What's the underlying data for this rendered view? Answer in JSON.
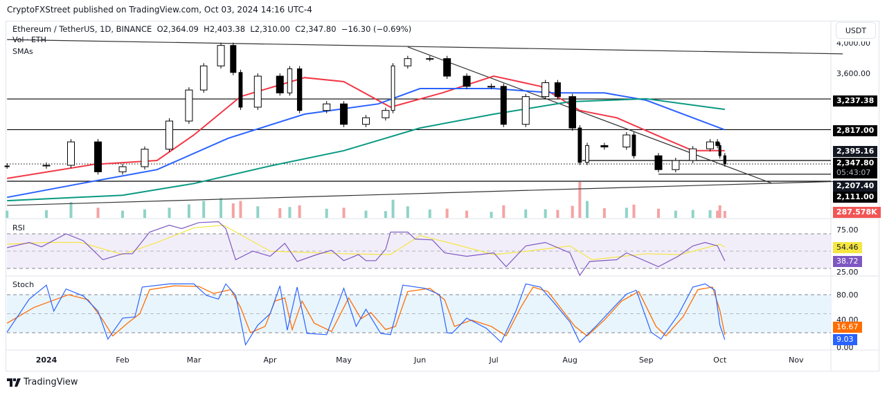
{
  "header": {
    "published": "CryptoFXStreet published on TradingView.com, Oct 03, 2024 14:16 UTC-4",
    "symbol": "Ethereum / TetherUS, 1D, BINANCE",
    "open": "O2,364.09",
    "high": "H2,403.38",
    "low": "L2,310.00",
    "close": "C2,347.80",
    "change": "−16.30 (−0.69%)",
    "vol_label": "Vol · ETH",
    "sma_label": "SMAs",
    "rsi_label": "RSI",
    "stoch_label": "Stoch",
    "currency_button": "USDT"
  },
  "footer": {
    "brand": "TradingView"
  },
  "colors": {
    "up_candle": "#ffffff",
    "down_candle": "#000000",
    "vol_up": "#8fd3c8",
    "vol_down": "#f5a3a3",
    "sma50": "#f23645",
    "sma100": "#2962ff",
    "sma200": "#089981",
    "rsi": "#7e57c2",
    "rsi_ma": "#f5e642",
    "stoch_k": "#2962ff",
    "stoch_d": "#ff6d00",
    "volume_badge": "#f25555"
  },
  "chart_data": {
    "type": "candlestick",
    "price_axis": {
      "ticks": [
        "4,000.00",
        "3,600.00"
      ],
      "ylim": [
        1780,
        4100
      ],
      "scale": "linear"
    },
    "time_axis": {
      "ticks": [
        "2024",
        "Feb",
        "Mar",
        "Apr",
        "May",
        "Jun",
        "Jul",
        "Aug",
        "Sep",
        "Oct",
        "Nov"
      ],
      "tick_dates": [
        "2024-01-01",
        "2024-02-01",
        "2024-03-01",
        "2024-04-01",
        "2024-05-01",
        "2024-06-01",
        "2024-07-01",
        "2024-08-01",
        "2024-09-01",
        "2024-10-01",
        "2024-11-01"
      ],
      "xlim": [
        "2023-12-16",
        "2024-11-20"
      ]
    },
    "price": [
      [
        "2023-12-16",
        2320
      ],
      [
        "2024-01-01",
        2330
      ],
      [
        "2024-01-11",
        2650
      ],
      [
        "2024-01-22",
        2240
      ],
      [
        "2024-02-01",
        2310
      ],
      [
        "2024-02-10",
        2550
      ],
      [
        "2024-02-20",
        2935
      ],
      [
        "2024-02-28",
        3360
      ],
      [
        "2024-03-05",
        3690
      ],
      [
        "2024-03-12",
        3970
      ],
      [
        "2024-03-17",
        3600
      ],
      [
        "2024-03-20",
        3125
      ],
      [
        "2024-03-27",
        3550
      ],
      [
        "2024-04-05",
        3320
      ],
      [
        "2024-04-09",
        3650
      ],
      [
        "2024-04-13",
        3080
      ],
      [
        "2024-04-24",
        3170
      ],
      [
        "2024-05-01",
        2890
      ],
      [
        "2024-05-10",
        2980
      ],
      [
        "2024-05-18",
        3080
      ],
      [
        "2024-05-21",
        3690
      ],
      [
        "2024-05-27",
        3790
      ],
      [
        "2024-06-05",
        3790
      ],
      [
        "2024-06-12",
        3550
      ],
      [
        "2024-06-20",
        3410
      ],
      [
        "2024-06-30",
        3410
      ],
      [
        "2024-07-05",
        2890
      ],
      [
        "2024-07-14",
        3270
      ],
      [
        "2024-07-22",
        3460
      ],
      [
        "2024-07-27",
        3270
      ],
      [
        "2024-08-02",
        2840
      ],
      [
        "2024-08-05",
        2370
      ],
      [
        "2024-08-08",
        2600
      ],
      [
        "2024-08-15",
        2580
      ],
      [
        "2024-08-24",
        2745
      ],
      [
        "2024-08-27",
        2460
      ],
      [
        "2024-09-06",
        2270
      ],
      [
        "2024-09-13",
        2395
      ],
      [
        "2024-09-20",
        2555
      ],
      [
        "2024-09-27",
        2650
      ],
      [
        "2024-09-30",
        2600
      ],
      [
        "2024-10-01",
        2460
      ],
      [
        "2024-10-03",
        2347.8
      ]
    ],
    "volume_k": [
      300,
      320,
      650,
      420,
      300,
      350,
      420,
      560,
      700,
      820,
      600,
      700,
      480,
      400,
      450,
      520,
      380,
      420,
      300,
      280,
      750,
      480,
      350,
      380,
      300,
      250,
      520,
      350,
      360,
      330,
      500,
      1500,
      700,
      400,
      420,
      550,
      380,
      300,
      330,
      320,
      300,
      520,
      287.578
    ],
    "series": [
      {
        "name": "SMA 50",
        "color": "#f23645",
        "values": [
          [
            "2023-12-16",
            2150
          ],
          [
            "2024-01-20",
            2340
          ],
          [
            "2024-02-15",
            2395
          ],
          [
            "2024-03-01",
            2745
          ],
          [
            "2024-03-20",
            3270
          ],
          [
            "2024-04-15",
            3530
          ],
          [
            "2024-05-01",
            3475
          ],
          [
            "2024-05-20",
            3125
          ],
          [
            "2024-06-10",
            3320
          ],
          [
            "2024-07-01",
            3550
          ],
          [
            "2024-07-20",
            3410
          ],
          [
            "2024-08-05",
            3080
          ],
          [
            "2024-08-20",
            2980
          ],
          [
            "2024-09-05",
            2745
          ],
          [
            "2024-09-20",
            2530
          ],
          [
            "2024-10-03",
            2530
          ]
        ]
      },
      {
        "name": "SMA 100",
        "color": "#2962ff",
        "values": [
          [
            "2023-12-16",
            1890
          ],
          [
            "2024-01-15",
            2080
          ],
          [
            "2024-02-15",
            2270
          ],
          [
            "2024-03-15",
            2700
          ],
          [
            "2024-04-15",
            3030
          ],
          [
            "2024-05-15",
            3170
          ],
          [
            "2024-06-01",
            3380
          ],
          [
            "2024-07-01",
            3380
          ],
          [
            "2024-07-25",
            3320
          ],
          [
            "2024-08-15",
            3320
          ],
          [
            "2024-09-01",
            3220
          ],
          [
            "2024-10-03",
            2815
          ]
        ]
      },
      {
        "name": "SMA 200",
        "color": "#089981",
        "values": [
          [
            "2023-12-16",
            1845
          ],
          [
            "2024-02-01",
            1920
          ],
          [
            "2024-03-01",
            2080
          ],
          [
            "2024-04-01",
            2320
          ],
          [
            "2024-05-01",
            2530
          ],
          [
            "2024-06-01",
            2840
          ],
          [
            "2024-07-01",
            3030
          ],
          [
            "2024-08-01",
            3200
          ],
          [
            "2024-09-01",
            3240
          ],
          [
            "2024-10-03",
            3095
          ]
        ]
      }
    ],
    "levels": [
      {
        "price": 3237.38,
        "label": "3,237.38",
        "from": "2023-12-16"
      },
      {
        "price": 2817.0,
        "label": "2,817.00",
        "from": "2023-12-16"
      },
      {
        "price": 2395.16,
        "label": "2,395.16",
        "from": "2024-08-06"
      },
      {
        "price": 2207.4,
        "label": "2,207.40",
        "from": "2024-09-06"
      },
      {
        "price": 2111.0,
        "label": "2,111.00",
        "from": "2023-12-16"
      }
    ],
    "last_price": {
      "price": 2347.8,
      "label": "2,347.80",
      "countdown": "05:43:07"
    },
    "volume_badge": "287.578K",
    "trendlines": [
      {
        "from": [
          "2023-12-16",
          4050
        ],
        "to": [
          "2024-11-20",
          3855
        ]
      },
      {
        "from": [
          "2024-05-27",
          3950
        ],
        "to": [
          "2024-10-22",
          2085
        ]
      },
      {
        "from": [
          "2023-12-16",
          1780
        ],
        "to": [
          "2024-11-20",
          2111
        ]
      }
    ],
    "rsi": {
      "axis_ticks": [
        "75.00",
        "25.00"
      ],
      "bands": [
        70,
        30
      ],
      "mid": 50,
      "rsi_value_label": "38.72",
      "ma_value_label": "54.46",
      "rsi": [
        [
          "2023-12-16",
          54
        ],
        [
          "2023-12-25",
          60
        ],
        [
          "2023-12-30",
          55
        ],
        [
          "2024-01-09",
          70
        ],
        [
          "2024-01-16",
          62
        ],
        [
          "2024-01-24",
          40
        ],
        [
          "2024-02-01",
          47
        ],
        [
          "2024-02-05",
          47
        ],
        [
          "2024-02-12",
          72
        ],
        [
          "2024-02-20",
          80
        ],
        [
          "2024-02-25",
          76
        ],
        [
          "2024-03-03",
          83
        ],
        [
          "2024-03-11",
          84
        ],
        [
          "2024-03-14",
          76
        ],
        [
          "2024-03-18",
          40
        ],
        [
          "2024-03-25",
          50
        ],
        [
          "2024-04-01",
          44
        ],
        [
          "2024-04-07",
          59
        ],
        [
          "2024-04-12",
          38
        ],
        [
          "2024-04-20",
          46
        ],
        [
          "2024-04-26",
          51
        ],
        [
          "2024-05-01",
          39
        ],
        [
          "2024-05-07",
          46
        ],
        [
          "2024-05-10",
          39
        ],
        [
          "2024-05-14",
          39
        ],
        [
          "2024-05-18",
          52
        ],
        [
          "2024-05-20",
          72
        ],
        [
          "2024-05-27",
          72
        ],
        [
          "2024-05-30",
          64
        ],
        [
          "2024-06-06",
          63
        ],
        [
          "2024-06-11",
          48
        ],
        [
          "2024-06-20",
          44
        ],
        [
          "2024-07-01",
          48
        ],
        [
          "2024-07-06",
          32
        ],
        [
          "2024-07-14",
          56
        ],
        [
          "2024-07-22",
          60
        ],
        [
          "2024-08-01",
          48
        ],
        [
          "2024-08-05",
          22
        ],
        [
          "2024-08-09",
          38
        ],
        [
          "2024-08-20",
          40
        ],
        [
          "2024-08-24",
          48
        ],
        [
          "2024-09-06",
          32
        ],
        [
          "2024-09-14",
          44
        ],
        [
          "2024-09-20",
          56
        ],
        [
          "2024-09-25",
          60
        ],
        [
          "2024-09-30",
          56
        ],
        [
          "2024-10-03",
          38.72
        ]
      ],
      "ma": [
        [
          "2023-12-16",
          58
        ],
        [
          "2024-01-01",
          60
        ],
        [
          "2024-01-15",
          60
        ],
        [
          "2024-02-01",
          46
        ],
        [
          "2024-02-15",
          60
        ],
        [
          "2024-03-01",
          77
        ],
        [
          "2024-03-13",
          80
        ],
        [
          "2024-04-01",
          50
        ],
        [
          "2024-05-01",
          47
        ],
        [
          "2024-05-20",
          46
        ],
        [
          "2024-06-01",
          68
        ],
        [
          "2024-06-15",
          58
        ],
        [
          "2024-07-01",
          46
        ],
        [
          "2024-07-15",
          50
        ],
        [
          "2024-08-01",
          56
        ],
        [
          "2024-08-10",
          40
        ],
        [
          "2024-09-01",
          47
        ],
        [
          "2024-09-15",
          46
        ],
        [
          "2024-10-01",
          58
        ],
        [
          "2024-10-03",
          54.46
        ]
      ]
    },
    "stoch": {
      "axis_ticks": [
        "80.00",
        "40.00",
        "0.00"
      ],
      "bands": [
        80,
        20
      ],
      "mid": 50,
      "k_value_label": "9.03",
      "d_value_label": "16.67",
      "k": [
        [
          "2023-12-16",
          21
        ],
        [
          "2023-12-25",
          73
        ],
        [
          "2024-01-01",
          95
        ],
        [
          "2024-01-04",
          54
        ],
        [
          "2024-01-09",
          89
        ],
        [
          "2024-01-16",
          78
        ],
        [
          "2024-01-22",
          54
        ],
        [
          "2024-01-26",
          10
        ],
        [
          "2024-02-01",
          43
        ],
        [
          "2024-02-06",
          45
        ],
        [
          "2024-02-09",
          92
        ],
        [
          "2024-02-20",
          97
        ],
        [
          "2024-03-01",
          97
        ],
        [
          "2024-03-06",
          79
        ],
        [
          "2024-03-11",
          73
        ],
        [
          "2024-03-14",
          97
        ],
        [
          "2024-03-18",
          79
        ],
        [
          "2024-03-22",
          1
        ],
        [
          "2024-03-27",
          32
        ],
        [
          "2024-04-01",
          50
        ],
        [
          "2024-04-05",
          94
        ],
        [
          "2024-04-08",
          24
        ],
        [
          "2024-04-12",
          92
        ],
        [
          "2024-04-16",
          19
        ],
        [
          "2024-04-24",
          17
        ],
        [
          "2024-05-01",
          90
        ],
        [
          "2024-05-06",
          30
        ],
        [
          "2024-05-10",
          57
        ],
        [
          "2024-05-16",
          19
        ],
        [
          "2024-05-20",
          17
        ],
        [
          "2024-05-22",
          46
        ],
        [
          "2024-05-25",
          95
        ],
        [
          "2024-06-03",
          90
        ],
        [
          "2024-06-09",
          80
        ],
        [
          "2024-06-12",
          20
        ],
        [
          "2024-06-14",
          19
        ],
        [
          "2024-06-20",
          43
        ],
        [
          "2024-06-28",
          27
        ],
        [
          "2024-07-04",
          5
        ],
        [
          "2024-07-10",
          54
        ],
        [
          "2024-07-14",
          97
        ],
        [
          "2024-07-20",
          92
        ],
        [
          "2024-07-26",
          65
        ],
        [
          "2024-08-01",
          37
        ],
        [
          "2024-08-05",
          5
        ],
        [
          "2024-08-12",
          32
        ],
        [
          "2024-08-20",
          65
        ],
        [
          "2024-08-24",
          81
        ],
        [
          "2024-08-28",
          87
        ],
        [
          "2024-09-03",
          21
        ],
        [
          "2024-09-07",
          10
        ],
        [
          "2024-09-14",
          48
        ],
        [
          "2024-09-20",
          92
        ],
        [
          "2024-09-25",
          97
        ],
        [
          "2024-09-29",
          87
        ],
        [
          "2024-10-01",
          32
        ],
        [
          "2024-10-03",
          9.03
        ]
      ],
      "d": [
        [
          "2023-12-16",
          35
        ],
        [
          "2023-12-27",
          60
        ],
        [
          "2024-01-03",
          70
        ],
        [
          "2024-01-10",
          80
        ],
        [
          "2024-01-18",
          72
        ],
        [
          "2024-01-24",
          40
        ],
        [
          "2024-01-28",
          15
        ],
        [
          "2024-02-03",
          35
        ],
        [
          "2024-02-08",
          50
        ],
        [
          "2024-02-12",
          88
        ],
        [
          "2024-02-22",
          94
        ],
        [
          "2024-03-03",
          93
        ],
        [
          "2024-03-09",
          82
        ],
        [
          "2024-03-16",
          88
        ],
        [
          "2024-03-20",
          60
        ],
        [
          "2024-03-24",
          20
        ],
        [
          "2024-03-30",
          30
        ],
        [
          "2024-04-03",
          70
        ],
        [
          "2024-04-07",
          75
        ],
        [
          "2024-04-10",
          25
        ],
        [
          "2024-04-14",
          70
        ],
        [
          "2024-04-19",
          35
        ],
        [
          "2024-04-26",
          22
        ],
        [
          "2024-05-03",
          75
        ],
        [
          "2024-05-08",
          42
        ],
        [
          "2024-05-12",
          52
        ],
        [
          "2024-05-18",
          25
        ],
        [
          "2024-05-22",
          30
        ],
        [
          "2024-05-27",
          85
        ],
        [
          "2024-06-05",
          90
        ],
        [
          "2024-06-11",
          72
        ],
        [
          "2024-06-15",
          30
        ],
        [
          "2024-06-22",
          40
        ],
        [
          "2024-06-30",
          30
        ],
        [
          "2024-07-06",
          15
        ],
        [
          "2024-07-12",
          60
        ],
        [
          "2024-07-17",
          92
        ],
        [
          "2024-07-23",
          85
        ],
        [
          "2024-07-29",
          55
        ],
        [
          "2024-08-03",
          30
        ],
        [
          "2024-08-08",
          15
        ],
        [
          "2024-08-15",
          40
        ],
        [
          "2024-08-22",
          70
        ],
        [
          "2024-08-29",
          85
        ],
        [
          "2024-09-05",
          30
        ],
        [
          "2024-09-09",
          15
        ],
        [
          "2024-09-16",
          45
        ],
        [
          "2024-09-22",
          88
        ],
        [
          "2024-09-28",
          92
        ],
        [
          "2024-10-01",
          55
        ],
        [
          "2024-10-03",
          16.67
        ]
      ]
    }
  }
}
